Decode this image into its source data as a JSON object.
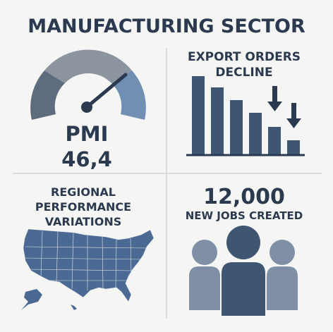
{
  "header": {
    "title": "MANUFACTURING SECTOR"
  },
  "panels": {
    "pmi": {
      "label": "PMI",
      "value": "46,4"
    },
    "export": {
      "title_lines": [
        "EXPORT ORDERS",
        "DECLINE"
      ]
    },
    "regional": {
      "title_lines": [
        "REGIONAL",
        "PERFORMANCE",
        "VARIATIONS"
      ]
    },
    "jobs": {
      "value": "12,000",
      "label": "NEW JOBS CREATED"
    }
  }
}
